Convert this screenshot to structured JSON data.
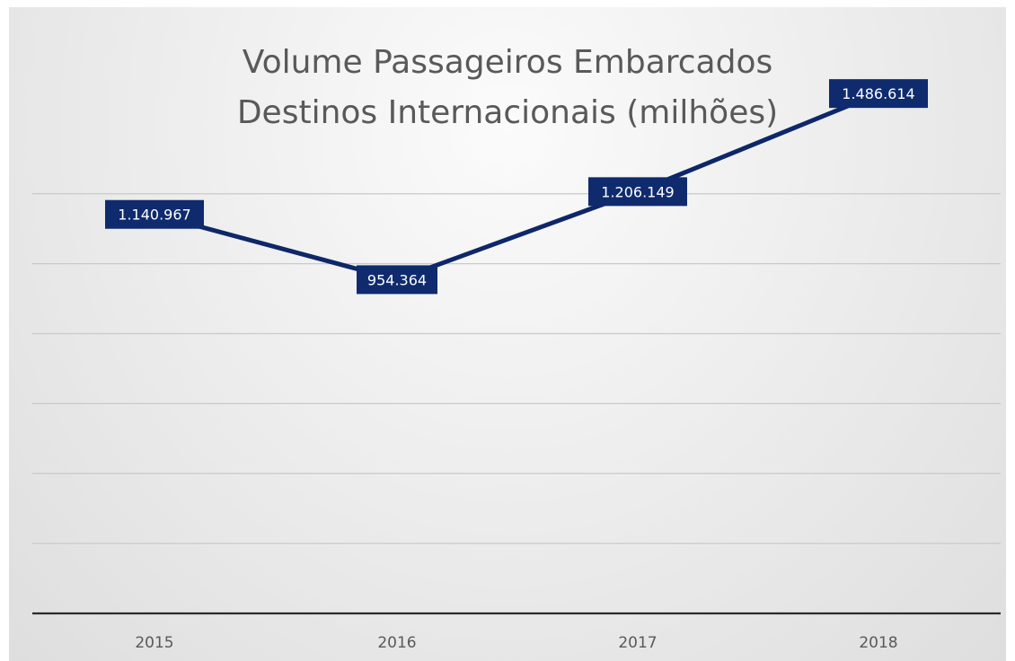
{
  "chart_data": {
    "type": "line",
    "title_lines": [
      "Volume Passageiros Embarcados",
      "Destinos Internacionais (milhões)"
    ],
    "categories": [
      "2015",
      "2016",
      "2017",
      "2018"
    ],
    "series": [
      {
        "values": [
          1140967,
          954364,
          1206149,
          1486614
        ],
        "labels": [
          "1.140.967",
          "954.364",
          "1.206.149",
          "1.486.614"
        ],
        "color": "#0f2b6e"
      }
    ],
    "xlabel": "",
    "ylabel": "",
    "ylim": [
      0,
      1600000
    ],
    "y_tick_step": 200000,
    "y_tick_labels_visible": false,
    "grid": true,
    "legend": "none"
  }
}
